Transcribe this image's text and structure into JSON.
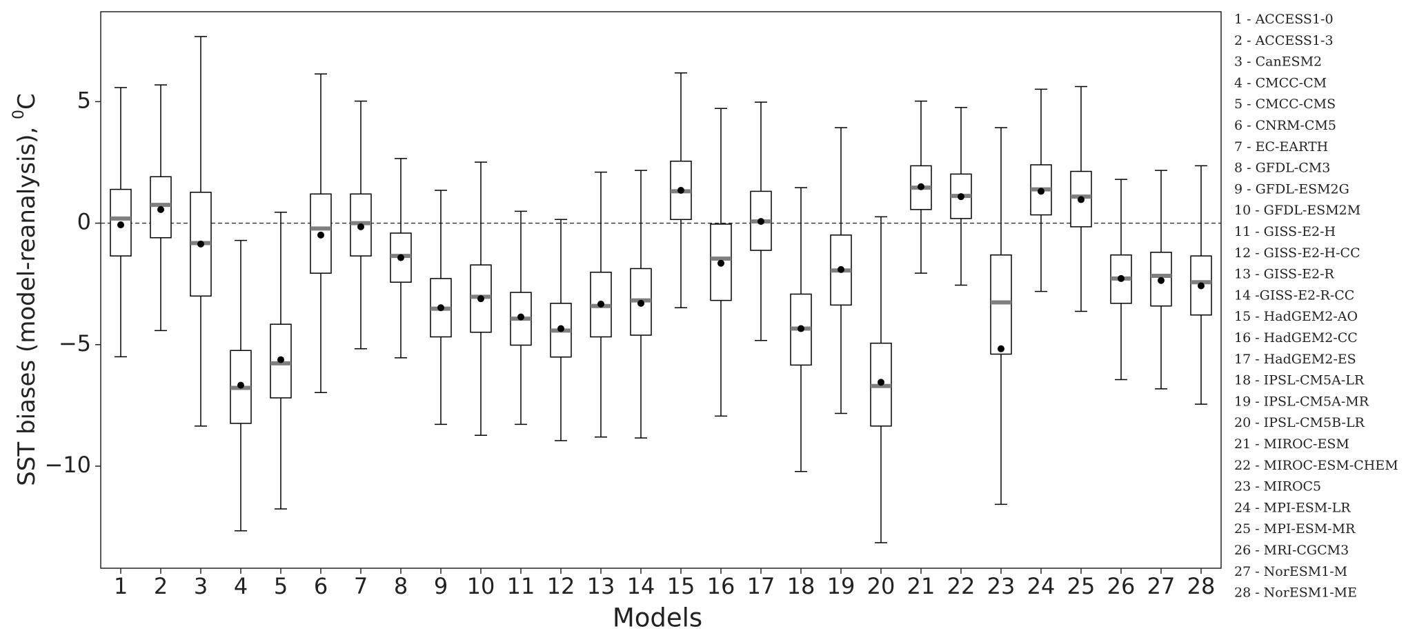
{
  "chart_data": {
    "type": "box",
    "ylabel": "SST biases (model-reanalysis), ",
    "ylabel_sup": "0",
    "ylabel_unit": "C",
    "xlabel": "Models",
    "categories": [
      "1",
      "2",
      "3",
      "4",
      "5",
      "6",
      "7",
      "8",
      "9",
      "10",
      "11",
      "12",
      "13",
      "14",
      "15",
      "16",
      "17",
      "18",
      "19",
      "20",
      "21",
      "22",
      "23",
      "24",
      "25",
      "26",
      "27",
      "28"
    ],
    "boxes": [
      {
        "whislo": -5.5,
        "q1": -1.35,
        "med": 0.19,
        "q3": 1.39,
        "whishi": 5.58,
        "mean": -0.07
      },
      {
        "whislo": -4.42,
        "q1": -0.6,
        "med": 0.75,
        "q3": 1.91,
        "whishi": 5.69,
        "mean": 0.56
      },
      {
        "whislo": -8.35,
        "q1": -3.0,
        "med": -0.82,
        "q3": 1.27,
        "whishi": 7.68,
        "mean": -0.86
      },
      {
        "whislo": -12.66,
        "q1": -8.24,
        "med": -6.78,
        "q3": -5.24,
        "whishi": -0.71,
        "mean": -6.67
      },
      {
        "whislo": -11.76,
        "q1": -7.19,
        "med": -5.77,
        "q3": -4.16,
        "whishi": 0.45,
        "mean": -5.62
      },
      {
        "whislo": -6.97,
        "q1": -2.06,
        "med": -0.22,
        "q3": 1.2,
        "whishi": 6.14,
        "mean": -0.49
      },
      {
        "whislo": -5.17,
        "q1": -1.35,
        "med": 0.0,
        "q3": 1.2,
        "whishi": 5.02,
        "mean": -0.15
      },
      {
        "whislo": -5.54,
        "q1": -2.43,
        "med": -1.35,
        "q3": -0.41,
        "whishi": 2.66,
        "mean": -1.42
      },
      {
        "whislo": -8.28,
        "q1": -4.68,
        "med": -3.52,
        "q3": -2.28,
        "whishi": 1.35,
        "mean": -3.48
      },
      {
        "whislo": -8.73,
        "q1": -4.49,
        "med": -3.03,
        "q3": -1.72,
        "whishi": 2.51,
        "mean": -3.11
      },
      {
        "whislo": -8.28,
        "q1": -5.02,
        "med": -3.93,
        "q3": -2.85,
        "whishi": 0.49,
        "mean": -3.86
      },
      {
        "whislo": -8.95,
        "q1": -5.51,
        "med": -4.42,
        "q3": -3.3,
        "whishi": 0.15,
        "mean": -4.34
      },
      {
        "whislo": -8.8,
        "q1": -4.68,
        "med": -3.41,
        "q3": -2.02,
        "whishi": 2.1,
        "mean": -3.33
      },
      {
        "whislo": -8.84,
        "q1": -4.61,
        "med": -3.18,
        "q3": -1.87,
        "whishi": 2.17,
        "mean": -3.3
      },
      {
        "whislo": -3.48,
        "q1": 0.15,
        "med": 1.31,
        "q3": 2.55,
        "whishi": 6.18,
        "mean": 1.35
      },
      {
        "whislo": -7.94,
        "q1": -3.18,
        "med": -1.46,
        "q3": -0.04,
        "whishi": 4.72,
        "mean": -1.65
      },
      {
        "whislo": -4.83,
        "q1": -1.12,
        "med": 0.07,
        "q3": 1.31,
        "whishi": 4.98,
        "mean": 0.07
      },
      {
        "whislo": -10.22,
        "q1": -5.84,
        "med": -4.34,
        "q3": -2.92,
        "whishi": 1.46,
        "mean": -4.34
      },
      {
        "whislo": -7.83,
        "q1": -3.37,
        "med": -1.95,
        "q3": -0.49,
        "whishi": 3.93,
        "mean": -1.91
      },
      {
        "whislo": -13.15,
        "q1": -8.35,
        "med": -6.7,
        "q3": -4.94,
        "whishi": 0.26,
        "mean": -6.55
      },
      {
        "whislo": -2.06,
        "q1": 0.56,
        "med": 1.46,
        "q3": 2.36,
        "whishi": 5.02,
        "mean": 1.5
      },
      {
        "whislo": -2.55,
        "q1": 0.19,
        "med": 1.12,
        "q3": 2.02,
        "whishi": 4.76,
        "mean": 1.09
      },
      {
        "whislo": -11.57,
        "q1": -5.39,
        "med": -3.26,
        "q3": -1.31,
        "whishi": 3.93,
        "mean": -5.17
      },
      {
        "whislo": -2.81,
        "q1": 0.34,
        "med": 1.39,
        "q3": 2.4,
        "whishi": 5.51,
        "mean": 1.31
      },
      {
        "whislo": -3.63,
        "q1": -0.15,
        "med": 1.09,
        "q3": 2.13,
        "whishi": 5.62,
        "mean": 0.97
      },
      {
        "whislo": -6.44,
        "q1": -3.3,
        "med": -2.28,
        "q3": -1.31,
        "whishi": 1.8,
        "mean": -2.28
      },
      {
        "whislo": -6.82,
        "q1": -3.41,
        "med": -2.17,
        "q3": -1.2,
        "whishi": 2.17,
        "mean": -2.36
      },
      {
        "whislo": -7.45,
        "q1": -3.78,
        "med": -2.43,
        "q3": -1.35,
        "whishi": 2.36,
        "mean": -2.58
      }
    ],
    "box_color": "#000000",
    "median_color": "#808080",
    "mean_color": "#000000",
    "ylim": [
      -14.2,
      8.7
    ],
    "yticks": [
      {
        "value": -10,
        "label": "−10"
      },
      {
        "value": -5,
        "label": "−5"
      },
      0,
      5
    ],
    "hline": 0,
    "legend_entries": [
      "1 - ACCESS1-0",
      "2 - ACCESS1-3",
      "3 - CanESM2",
      "4 - CMCC-CM",
      "5 - CMCC-CMS",
      "6 - CNRM-CM5",
      "7 - EC-EARTH",
      "8 - GFDL-CM3",
      "9 - GFDL-ESM2G",
      "10 - GFDL-ESM2M",
      "11 - GISS-E2-H",
      "12 - GISS-E2-H-CC",
      "13 - GISS-E2-R",
      "14 -GISS-E2-R-CC",
      "15 - HadGEM2-AO",
      "16 - HadGEM2-CC",
      "17 - HadGEM2-ES",
      "18 - IPSL-CM5A-LR",
      "19 - IPSL-CM5A-MR",
      "20 - IPSL-CM5B-LR",
      "21 - MIROC-ESM",
      "22 - MIROC-ESM-CHEM",
      "23 - MIROC5",
      "24 - MPI-ESM-LR",
      "25 - MPI-ESM-MR",
      "26 - MRI-CGCM3",
      "27 - NorESM1-M",
      "28 - NorESM1-ME"
    ]
  }
}
